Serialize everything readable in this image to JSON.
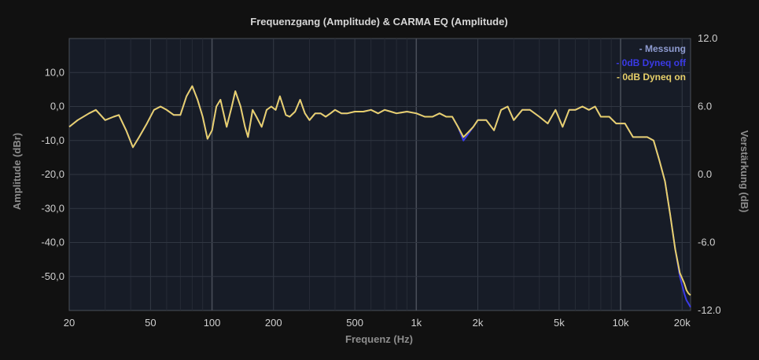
{
  "chart_data": {
    "type": "line",
    "title": "Frequenzgang (Amplitude) & CARMA EQ (Amplitude)",
    "xlabel": "Frequenz (Hz)",
    "ylabel": "Amplitude (dBr)",
    "y2label": "Verstärkung (dB)",
    "xscale": "log",
    "xlim": [
      20,
      22000
    ],
    "ylim": [
      -60,
      20
    ],
    "y2lim": [
      -12,
      12
    ],
    "grid": true,
    "legend_position": "top-right",
    "x_ticks": [
      {
        "value": 20,
        "label": "20"
      },
      {
        "value": 50,
        "label": "50"
      },
      {
        "value": 100,
        "label": "100"
      },
      {
        "value": 200,
        "label": "200"
      },
      {
        "value": 500,
        "label": "500"
      },
      {
        "value": 1000,
        "label": "1k"
      },
      {
        "value": 2000,
        "label": "2k"
      },
      {
        "value": 5000,
        "label": "5k"
      },
      {
        "value": 10000,
        "label": "10k"
      },
      {
        "value": 20000,
        "label": "20k"
      }
    ],
    "y_ticks": [
      {
        "value": 10,
        "label": "10,0"
      },
      {
        "value": 0,
        "label": "0,0"
      },
      {
        "value": -10,
        "label": "-10,0"
      },
      {
        "value": -20,
        "label": "-20,0"
      },
      {
        "value": -30,
        "label": "-30,0"
      },
      {
        "value": -40,
        "label": "-40,0"
      },
      {
        "value": -50,
        "label": "-50,0"
      }
    ],
    "y2_ticks": [
      {
        "value": 12,
        "label": "12.0"
      },
      {
        "value": 6,
        "label": "6.0"
      },
      {
        "value": 0,
        "label": "0.0"
      },
      {
        "value": -6,
        "label": "-6.0"
      },
      {
        "value": -12,
        "label": "-12.0"
      }
    ],
    "series": [
      {
        "name": "- Messung",
        "color": "#8e9bd0",
        "x": [],
        "y": []
      },
      {
        "name": "- 0dB Dyneq off",
        "color": "#3a3ae6",
        "x": [
          20,
          22,
          25,
          27,
          30,
          33,
          35,
          38,
          41,
          44,
          48,
          52,
          56,
          60,
          65,
          70,
          75,
          80,
          85,
          90,
          95,
          100,
          105,
          110,
          118,
          125,
          130,
          138,
          145,
          150,
          158,
          165,
          175,
          185,
          195,
          205,
          215,
          230,
          240,
          255,
          270,
          285,
          300,
          320,
          340,
          360,
          380,
          400,
          430,
          460,
          500,
          550,
          600,
          650,
          700,
          750,
          800,
          900,
          1000,
          1100,
          1200,
          1300,
          1400,
          1500,
          1600,
          1700,
          1800,
          1900,
          2000,
          2200,
          2400,
          2600,
          2800,
          3000,
          3300,
          3600,
          4000,
          4400,
          4800,
          5200,
          5600,
          6000,
          6500,
          7000,
          7500,
          8000,
          8800,
          9500,
          10500,
          11500,
          12500,
          13500,
          14500,
          15500,
          16500,
          17500,
          18500,
          19500,
          20500,
          21000,
          21500,
          22000
        ],
        "y": [
          -6,
          -4,
          -2,
          -1,
          -4,
          -3,
          -2.5,
          -7,
          -12,
          -9,
          -5,
          -1,
          0,
          -1,
          -2.5,
          -2.5,
          3,
          6,
          2,
          -3,
          -9.5,
          -7,
          0,
          2,
          -6,
          0,
          4.5,
          0,
          -6,
          -9,
          -1,
          -3,
          -6,
          -1,
          0,
          -1,
          3,
          -2.5,
          -3,
          -1.5,
          2,
          -2,
          -4,
          -2,
          -2,
          -3,
          -2,
          -1,
          -2,
          -2,
          -1.5,
          -1.5,
          -1,
          -2,
          -1,
          -1.5,
          -2,
          -1.5,
          -2,
          -3,
          -3,
          -2,
          -3,
          -3,
          -6,
          -10,
          -8,
          -6,
          -4,
          -4,
          -7,
          -1,
          0,
          -4,
          -1,
          -1,
          -3,
          -5,
          -1,
          -6,
          -1,
          -1,
          0,
          -1,
          0,
          -3,
          -3,
          -5,
          -5,
          -9,
          -9,
          -9,
          -10,
          -16,
          -22,
          -32,
          -42,
          -50,
          -55,
          -57,
          -58,
          -59
        ]
      },
      {
        "name": "- 0dB Dyneq on",
        "color": "#e8d06a",
        "x": [
          20,
          22,
          25,
          27,
          30,
          33,
          35,
          38,
          41,
          44,
          48,
          52,
          56,
          60,
          65,
          70,
          75,
          80,
          85,
          90,
          95,
          100,
          105,
          110,
          118,
          125,
          130,
          138,
          145,
          150,
          158,
          165,
          175,
          185,
          195,
          205,
          215,
          230,
          240,
          255,
          270,
          285,
          300,
          320,
          340,
          360,
          380,
          400,
          430,
          460,
          500,
          550,
          600,
          650,
          700,
          750,
          800,
          900,
          1000,
          1100,
          1200,
          1300,
          1400,
          1500,
          1600,
          1700,
          1800,
          1900,
          2000,
          2200,
          2400,
          2600,
          2800,
          3000,
          3300,
          3600,
          4000,
          4400,
          4800,
          5200,
          5600,
          6000,
          6500,
          7000,
          7500,
          8000,
          8800,
          9500,
          10500,
          11500,
          12500,
          13500,
          14500,
          15500,
          16500,
          17500,
          18500,
          19500,
          20500,
          21000,
          21500,
          22000
        ],
        "y": [
          -6,
          -4,
          -2,
          -1,
          -4,
          -3,
          -2.5,
          -7,
          -12,
          -9,
          -5,
          -1,
          0,
          -1,
          -2.5,
          -2.5,
          3,
          6,
          2,
          -3,
          -9.5,
          -7,
          0,
          2,
          -6,
          0,
          4.5,
          0,
          -6,
          -9,
          -1,
          -3,
          -6,
          -1,
          0,
          -1,
          3,
          -2.5,
          -3,
          -1.5,
          2,
          -2,
          -4,
          -2,
          -2,
          -3,
          -2,
          -1,
          -2,
          -2,
          -1.5,
          -1.5,
          -1,
          -2,
          -1,
          -1.5,
          -2,
          -1.5,
          -2,
          -3,
          -3,
          -2,
          -3,
          -3,
          -6,
          -9,
          -7.5,
          -6,
          -4,
          -4,
          -7,
          -1,
          0,
          -4,
          -1,
          -1,
          -3,
          -5,
          -1,
          -6,
          -1,
          -1,
          0,
          -1,
          0,
          -3,
          -3,
          -5,
          -5,
          -9,
          -9,
          -9,
          -10,
          -16,
          -22,
          -32,
          -42,
          -49,
          -52,
          -54,
          -55,
          -55.5
        ]
      }
    ]
  }
}
